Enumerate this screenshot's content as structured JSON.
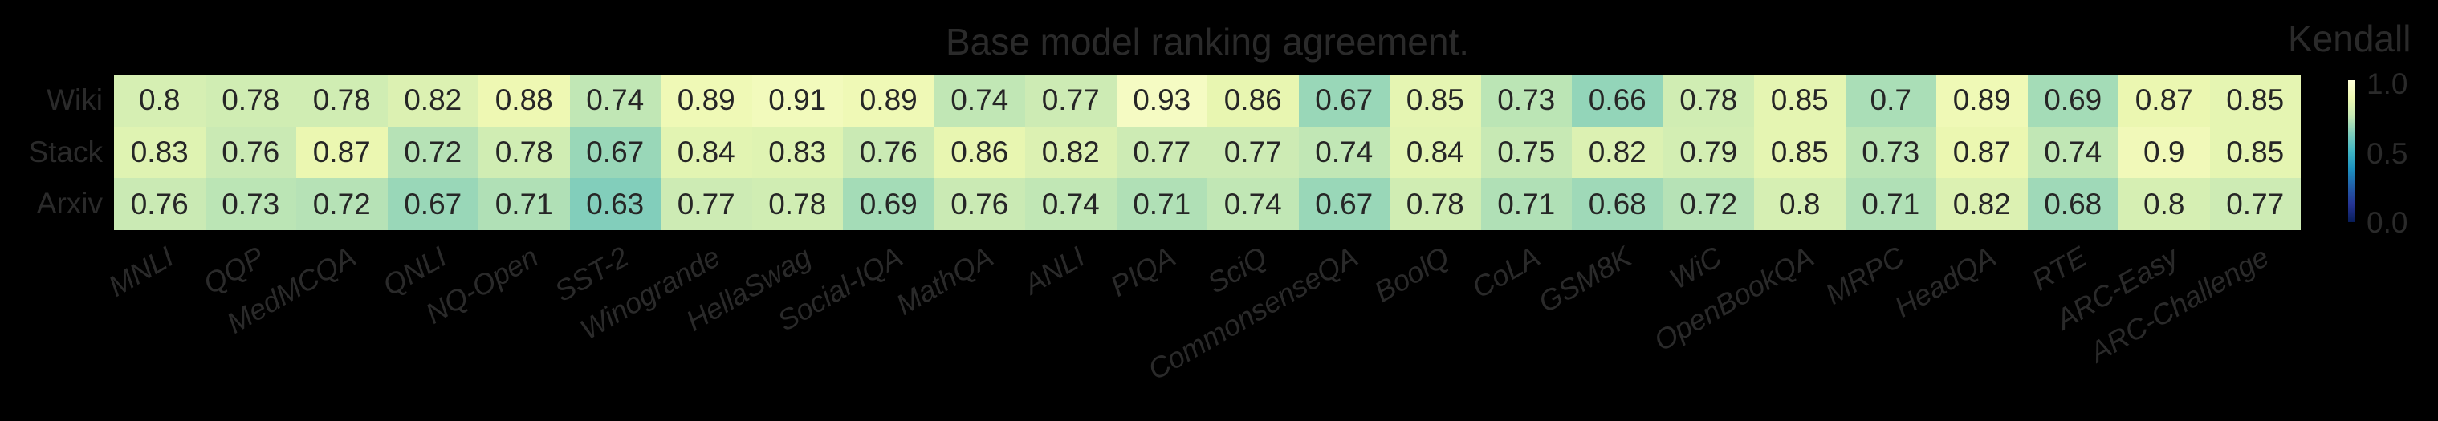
{
  "chart_data": {
    "type": "heatmap",
    "title": "Base model ranking agreement.",
    "rows": [
      "Wiki",
      "Stack",
      "Arxiv"
    ],
    "columns": [
      "MNLI",
      "QQP",
      "MedMCQA",
      "QNLI",
      "NQ-Open",
      "SST-2",
      "Winogrande",
      "HellaSwag",
      "Social-IQA",
      "MathQA",
      "ANLI",
      "PIQA",
      "SciQ",
      "CommonsenseQA",
      "BoolQ",
      "CoLA",
      "GSM8K",
      "WiC",
      "OpenBookQA",
      "MRPC",
      "HeadQA",
      "RTE",
      "ARC-Easy",
      "ARC-Challenge"
    ],
    "values": [
      [
        0.8,
        0.78,
        0.78,
        0.82,
        0.88,
        0.74,
        0.89,
        0.91,
        0.89,
        0.74,
        0.77,
        0.93,
        0.86,
        0.67,
        0.85,
        0.73,
        0.66,
        0.78,
        0.85,
        0.7,
        0.89,
        0.69,
        0.87,
        0.85
      ],
      [
        0.83,
        0.76,
        0.87,
        0.72,
        0.78,
        0.67,
        0.84,
        0.83,
        0.76,
        0.86,
        0.82,
        0.77,
        0.77,
        0.74,
        0.84,
        0.75,
        0.82,
        0.79,
        0.85,
        0.73,
        0.87,
        0.74,
        0.9,
        0.85
      ],
      [
        0.76,
        0.73,
        0.72,
        0.67,
        0.71,
        0.63,
        0.77,
        0.78,
        0.69,
        0.76,
        0.74,
        0.71,
        0.74,
        0.67,
        0.78,
        0.71,
        0.68,
        0.72,
        0.8,
        0.71,
        0.82,
        0.68,
        0.8,
        0.77
      ]
    ],
    "value_labels": [
      [
        "0.8",
        "0.78",
        "0.78",
        "0.82",
        "0.88",
        "0.74",
        "0.89",
        "0.91",
        "0.89",
        "0.74",
        "0.77",
        "0.93",
        "0.86",
        "0.67",
        "0.85",
        "0.73",
        "0.66",
        "0.78",
        "0.85",
        "0.7",
        "0.89",
        "0.69",
        "0.87",
        "0.85"
      ],
      [
        "0.83",
        "0.76",
        "0.87",
        "0.72",
        "0.78",
        "0.67",
        "0.84",
        "0.83",
        "0.76",
        "0.86",
        "0.82",
        "0.77",
        "0.77",
        "0.74",
        "0.84",
        "0.75",
        "0.82",
        "0.79",
        "0.85",
        "0.73",
        "0.87",
        "0.74",
        "0.9",
        "0.85"
      ],
      [
        "0.76",
        "0.73",
        "0.72",
        "0.67",
        "0.71",
        "0.63",
        "0.77",
        "0.78",
        "0.69",
        "0.76",
        "0.74",
        "0.71",
        "0.74",
        "0.67",
        "0.78",
        "0.71",
        "0.68",
        "0.72",
        "0.8",
        "0.71",
        "0.82",
        "0.68",
        "0.8",
        "0.77"
      ]
    ],
    "colorbar": {
      "label": "Kendall",
      "ticks": [
        "1.0",
        "0.5",
        "0.0"
      ],
      "range": [
        0.0,
        1.0
      ],
      "colormap": "YlGnBu",
      "colormap_stops": [
        "#081d58",
        "#253494",
        "#225ea8",
        "#1d91c0",
        "#41b6c4",
        "#7fcdbb",
        "#c7e9b4",
        "#edf8b1",
        "#ffffd9"
      ]
    },
    "xlabel": "",
    "ylabel": "",
    "xtick_rotation": 30,
    "grid": false
  }
}
